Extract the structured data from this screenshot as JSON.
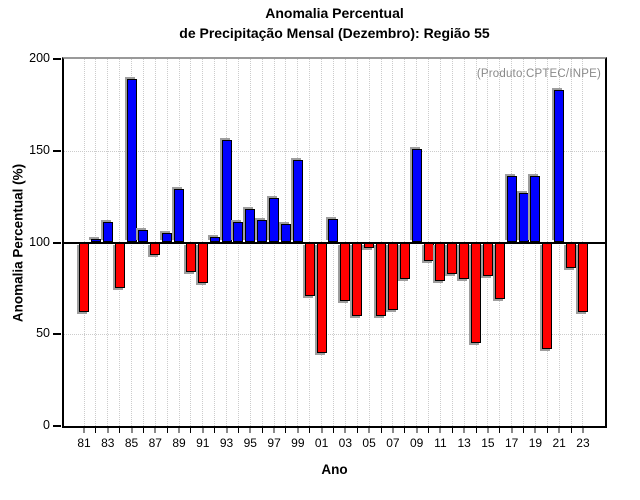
{
  "title": {
    "line1": "Anomalia Percentual",
    "line2": "de Precipitação Mensal (Dezembro): Região 55"
  },
  "chart_data": {
    "type": "bar",
    "title": "Anomalia Percentual de Precipitação Mensal (Dezembro): Região 55",
    "xlabel": "Ano",
    "ylabel": "Anomalia Percentual (%)",
    "annotation": "(Produto:CPTEC/INPE)",
    "annotation_position": "top-right",
    "ylim": [
      0,
      200
    ],
    "yticks": [
      0,
      50,
      100,
      150,
      200
    ],
    "baseline": 100,
    "grid": "dotted vertical line per year; dotted horizontal at 50 and 150; solid black line at 100",
    "x_labels_shown_every": 2,
    "bar_color_above": "#0000ff",
    "bar_color_below": "#ff0000",
    "shadow_color": "#9e9e9e",
    "categories": [
      "81",
      "82",
      "83",
      "84",
      "85",
      "86",
      "87",
      "88",
      "89",
      "90",
      "91",
      "92",
      "93",
      "94",
      "95",
      "96",
      "97",
      "98",
      "99",
      "00",
      "01",
      "02",
      "03",
      "04",
      "05",
      "06",
      "07",
      "08",
      "09",
      "10",
      "11",
      "12",
      "13",
      "14",
      "15",
      "16",
      "17",
      "18",
      "19",
      "20",
      "21",
      "22",
      "23"
    ],
    "values": [
      62,
      102,
      111,
      75,
      189,
      107,
      93,
      105,
      129,
      84,
      78,
      103,
      156,
      111,
      118,
      112,
      124,
      110,
      145,
      71,
      40,
      113,
      68,
      60,
      97,
      60,
      63,
      80,
      151,
      90,
      79,
      83,
      80,
      45,
      82,
      69,
      136,
      127,
      136,
      42,
      183,
      86,
      62
    ]
  }
}
